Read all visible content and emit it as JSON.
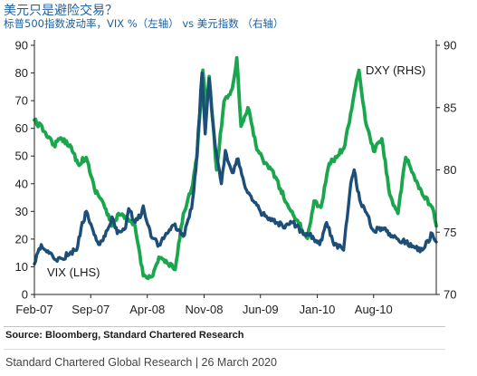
{
  "header": {
    "title": "美元只是避险交易？",
    "subtitle": "标普500指数波动率，VIX %（左轴） vs 美元指数 （右轴）"
  },
  "chart_data": {
    "type": "line",
    "x_axis": {
      "type": "date",
      "range": [
        "2007-02-01",
        "2011-03-25"
      ],
      "tick_labels": [
        "Feb-07",
        "Sep-07",
        "Apr-08",
        "Nov-08",
        "Jun-09",
        "Jan-10",
        "Aug-10"
      ],
      "tick_dates": [
        "2007-02-01",
        "2007-09-01",
        "2008-04-01",
        "2008-11-01",
        "2009-06-01",
        "2010-01-01",
        "2010-08-01"
      ]
    },
    "y_left": {
      "range": [
        0,
        90
      ],
      "ticks": [
        "0",
        "10",
        "20",
        "30",
        "40",
        "50",
        "60",
        "70",
        "80",
        "90"
      ]
    },
    "y_right": {
      "range": [
        70,
        90
      ],
      "ticks": [
        "70",
        "75",
        "80",
        "85",
        "90"
      ]
    },
    "grid": false,
    "series": [
      {
        "name": "VIX (LHS)",
        "axis": "left",
        "color": "#1c4e78",
        "points": [
          [
            "2007-02-01",
            11
          ],
          [
            "2007-02-27",
            18
          ],
          [
            "2007-03-15",
            16
          ],
          [
            "2007-04-15",
            13
          ],
          [
            "2007-05-15",
            13
          ],
          [
            "2007-06-15",
            15
          ],
          [
            "2007-07-10",
            16
          ],
          [
            "2007-07-27",
            24
          ],
          [
            "2007-08-16",
            30
          ],
          [
            "2007-09-10",
            23
          ],
          [
            "2007-10-05",
            18
          ],
          [
            "2007-10-25",
            21
          ],
          [
            "2007-11-20",
            28
          ],
          [
            "2007-12-10",
            22
          ],
          [
            "2008-01-10",
            24
          ],
          [
            "2008-01-22",
            31
          ],
          [
            "2008-02-15",
            26
          ],
          [
            "2008-03-10",
            29
          ],
          [
            "2008-03-17",
            32
          ],
          [
            "2008-04-15",
            21
          ],
          [
            "2008-05-15",
            18
          ],
          [
            "2008-06-15",
            22
          ],
          [
            "2008-07-10",
            25
          ],
          [
            "2008-08-15",
            21
          ],
          [
            "2008-09-15",
            31
          ],
          [
            "2008-10-01",
            45
          ],
          [
            "2008-10-24",
            80
          ],
          [
            "2008-11-05",
            58
          ],
          [
            "2008-11-20",
            78
          ],
          [
            "2008-12-10",
            56
          ],
          [
            "2009-01-05",
            40
          ],
          [
            "2009-01-20",
            52
          ],
          [
            "2009-02-15",
            44
          ],
          [
            "2009-03-09",
            49
          ],
          [
            "2009-04-01",
            40
          ],
          [
            "2009-05-01",
            34
          ],
          [
            "2009-06-01",
            30
          ],
          [
            "2009-07-01",
            27
          ],
          [
            "2009-08-01",
            26
          ],
          [
            "2009-09-01",
            24
          ],
          [
            "2009-10-01",
            26
          ],
          [
            "2009-11-01",
            23
          ],
          [
            "2009-12-15",
            21
          ],
          [
            "2010-01-10",
            18
          ],
          [
            "2010-02-05",
            26
          ],
          [
            "2010-03-01",
            19
          ],
          [
            "2010-04-10",
            16
          ],
          [
            "2010-05-07",
            40
          ],
          [
            "2010-05-20",
            45
          ],
          [
            "2010-06-10",
            34
          ],
          [
            "2010-07-01",
            30
          ],
          [
            "2010-08-01",
            23
          ],
          [
            "2010-09-01",
            24
          ],
          [
            "2010-10-01",
            22
          ],
          [
            "2010-11-01",
            20
          ],
          [
            "2010-12-01",
            19
          ],
          [
            "2011-01-01",
            17
          ],
          [
            "2011-02-01",
            16
          ],
          [
            "2011-03-10",
            22
          ],
          [
            "2011-03-25",
            19
          ]
        ]
      },
      {
        "name": "DXY (RHS)",
        "axis": "right",
        "color": "#19a64c",
        "points": [
          [
            "2007-02-01",
            84.0
          ],
          [
            "2007-03-15",
            83.0
          ],
          [
            "2007-04-15",
            82.0
          ],
          [
            "2007-05-15",
            82.5
          ],
          [
            "2007-06-15",
            82.0
          ],
          [
            "2007-07-15",
            80.5
          ],
          [
            "2007-08-15",
            81.0
          ],
          [
            "2007-09-15",
            78.5
          ],
          [
            "2007-10-15",
            77.5
          ],
          [
            "2007-11-20",
            75.5
          ],
          [
            "2007-12-15",
            76.5
          ],
          [
            "2008-01-15",
            76.0
          ],
          [
            "2008-02-15",
            75.5
          ],
          [
            "2008-03-17",
            71.5
          ],
          [
            "2008-04-22",
            71.5
          ],
          [
            "2008-05-15",
            73.0
          ],
          [
            "2008-06-15",
            72.5
          ],
          [
            "2008-07-15",
            72.0
          ],
          [
            "2008-08-15",
            76.5
          ],
          [
            "2008-09-15",
            78.5
          ],
          [
            "2008-10-05",
            81.0
          ],
          [
            "2008-10-27",
            88.0
          ],
          [
            "2008-11-10",
            85.0
          ],
          [
            "2008-11-20",
            87.5
          ],
          [
            "2008-12-18",
            80.0
          ],
          [
            "2009-01-15",
            85.5
          ],
          [
            "2009-02-15",
            86.5
          ],
          [
            "2009-03-04",
            89.0
          ],
          [
            "2009-03-20",
            83.5
          ],
          [
            "2009-04-15",
            85.0
          ],
          [
            "2009-05-15",
            82.0
          ],
          [
            "2009-06-15",
            80.5
          ],
          [
            "2009-07-15",
            80.0
          ],
          [
            "2009-08-15",
            78.5
          ],
          [
            "2009-09-15",
            77.0
          ],
          [
            "2009-10-15",
            76.0
          ],
          [
            "2009-11-25",
            74.5
          ],
          [
            "2009-12-20",
            77.5
          ],
          [
            "2010-01-15",
            77.0
          ],
          [
            "2010-02-15",
            80.5
          ],
          [
            "2010-03-15",
            81.0
          ],
          [
            "2010-04-15",
            82.0
          ],
          [
            "2010-05-15",
            85.5
          ],
          [
            "2010-06-07",
            88.0
          ],
          [
            "2010-07-01",
            84.0
          ],
          [
            "2010-08-01",
            81.5
          ],
          [
            "2010-09-01",
            82.5
          ],
          [
            "2010-10-01",
            78.0
          ],
          [
            "2010-11-01",
            76.5
          ],
          [
            "2010-11-30",
            81.0
          ],
          [
            "2011-01-01",
            79.5
          ],
          [
            "2011-02-01",
            78.0
          ],
          [
            "2011-03-10",
            77.0
          ],
          [
            "2011-03-25",
            75.5
          ]
        ]
      }
    ]
  },
  "source": "Source: Bloomberg, Standard Chartered Research",
  "footer": "Standard Chartered Global Research | 26 March 2020"
}
